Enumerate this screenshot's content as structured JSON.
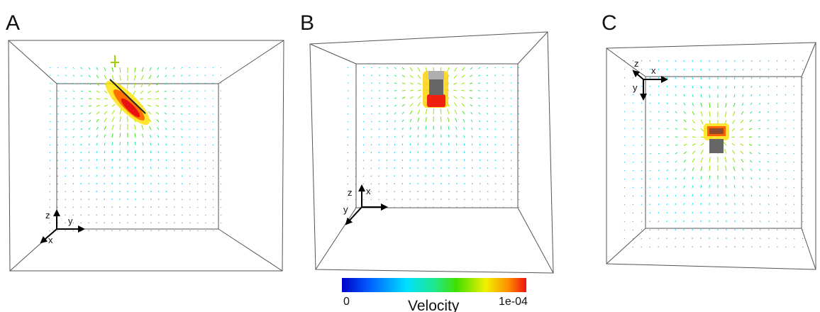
{
  "panels": [
    {
      "label": "A",
      "axes": [
        "z",
        "y",
        "x"
      ]
    },
    {
      "label": "B",
      "axes": [
        "z",
        "x",
        "y"
      ]
    },
    {
      "label": "C",
      "axes": [
        "z",
        "x",
        "y"
      ]
    }
  ],
  "colorbar": {
    "title": "Velocity",
    "min_label": "0",
    "max_label": "1e-04"
  }
}
